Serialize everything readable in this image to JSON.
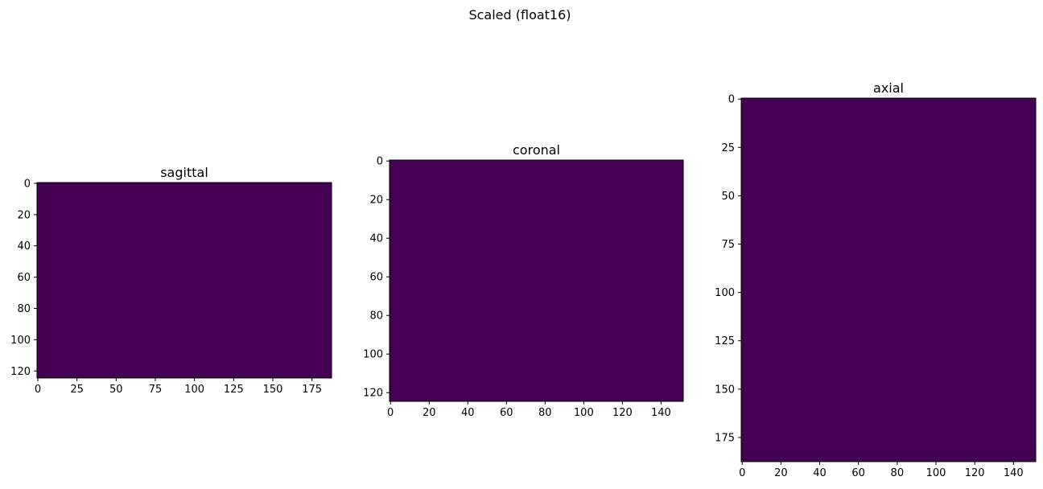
{
  "figure": {
    "suptitle": "Scaled (float16)"
  },
  "chart_data": [
    {
      "type": "heatmap",
      "title": "sagittal",
      "fill": "#440154",
      "x_extent": [
        -0.5,
        187.5
      ],
      "y_extent": [
        -0.5,
        124.5
      ],
      "y_inverted": true,
      "xticks": [
        0,
        25,
        50,
        75,
        100,
        125,
        150,
        175
      ],
      "yticks": [
        0,
        20,
        40,
        60,
        80,
        100,
        120
      ],
      "values": "uniform (all cells same value, viridis minimum color)"
    },
    {
      "type": "heatmap",
      "title": "coronal",
      "fill": "#440154",
      "x_extent": [
        -0.5,
        151.5
      ],
      "y_extent": [
        -0.5,
        124.5
      ],
      "y_inverted": true,
      "xticks": [
        0,
        20,
        40,
        60,
        80,
        100,
        120,
        140
      ],
      "yticks": [
        0,
        20,
        40,
        60,
        80,
        100,
        120
      ],
      "values": "uniform (all cells same value, viridis minimum color)"
    },
    {
      "type": "heatmap",
      "title": "axial",
      "fill": "#440154",
      "x_extent": [
        -0.5,
        151.5
      ],
      "y_extent": [
        -0.5,
        187.5
      ],
      "y_inverted": true,
      "xticks": [
        0,
        20,
        40,
        60,
        80,
        100,
        120,
        140
      ],
      "yticks": [
        0,
        25,
        50,
        75,
        100,
        125,
        150,
        175
      ],
      "values": "uniform (all cells same value, viridis minimum color)"
    }
  ]
}
